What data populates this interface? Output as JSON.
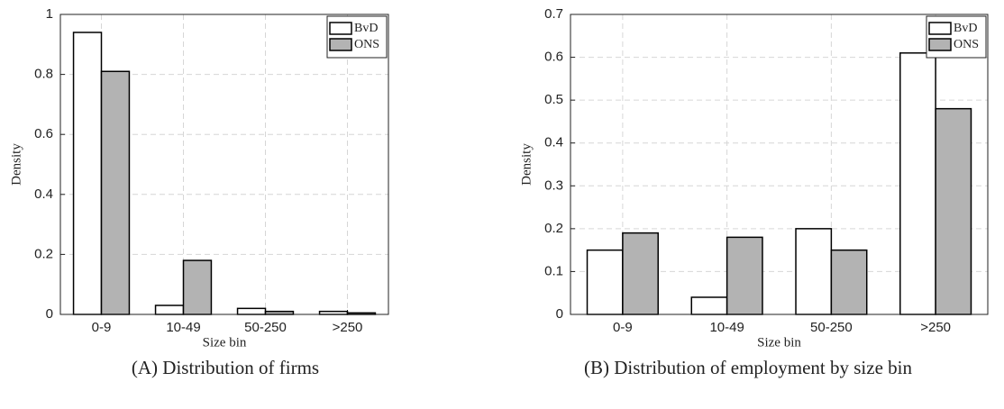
{
  "chart_data": [
    {
      "type": "bar",
      "caption": "(A) Distribution of firms",
      "xlabel": "Size bin",
      "ylabel": "Density",
      "categories": [
        "0-9",
        "10-49",
        "50-250",
        ">250"
      ],
      "series": [
        {
          "name": "BvD",
          "color": "#ffffff",
          "values": [
            0.94,
            0.03,
            0.02,
            0.01
          ]
        },
        {
          "name": "ONS",
          "color": "#b3b3b3",
          "values": [
            0.81,
            0.18,
            0.01,
            0.005
          ]
        }
      ],
      "ylim": [
        0,
        1
      ],
      "yticks": [
        0,
        0.2,
        0.4,
        0.6,
        0.8,
        1
      ],
      "grid": true,
      "legend": "top-right"
    },
    {
      "type": "bar",
      "caption": "(B) Distribution of employment by size bin",
      "xlabel": "Size bin",
      "ylabel": "Density",
      "categories": [
        "0-9",
        "10-49",
        "50-250",
        ">250"
      ],
      "series": [
        {
          "name": "BvD",
          "color": "#ffffff",
          "values": [
            0.15,
            0.04,
            0.2,
            0.61
          ]
        },
        {
          "name": "ONS",
          "color": "#b3b3b3",
          "values": [
            0.19,
            0.18,
            0.15,
            0.48
          ]
        }
      ],
      "ylim": [
        0,
        0.7
      ],
      "yticks": [
        0,
        0.1,
        0.2,
        0.3,
        0.4,
        0.5,
        0.6,
        0.7
      ],
      "grid": true,
      "legend": "top-right"
    }
  ]
}
